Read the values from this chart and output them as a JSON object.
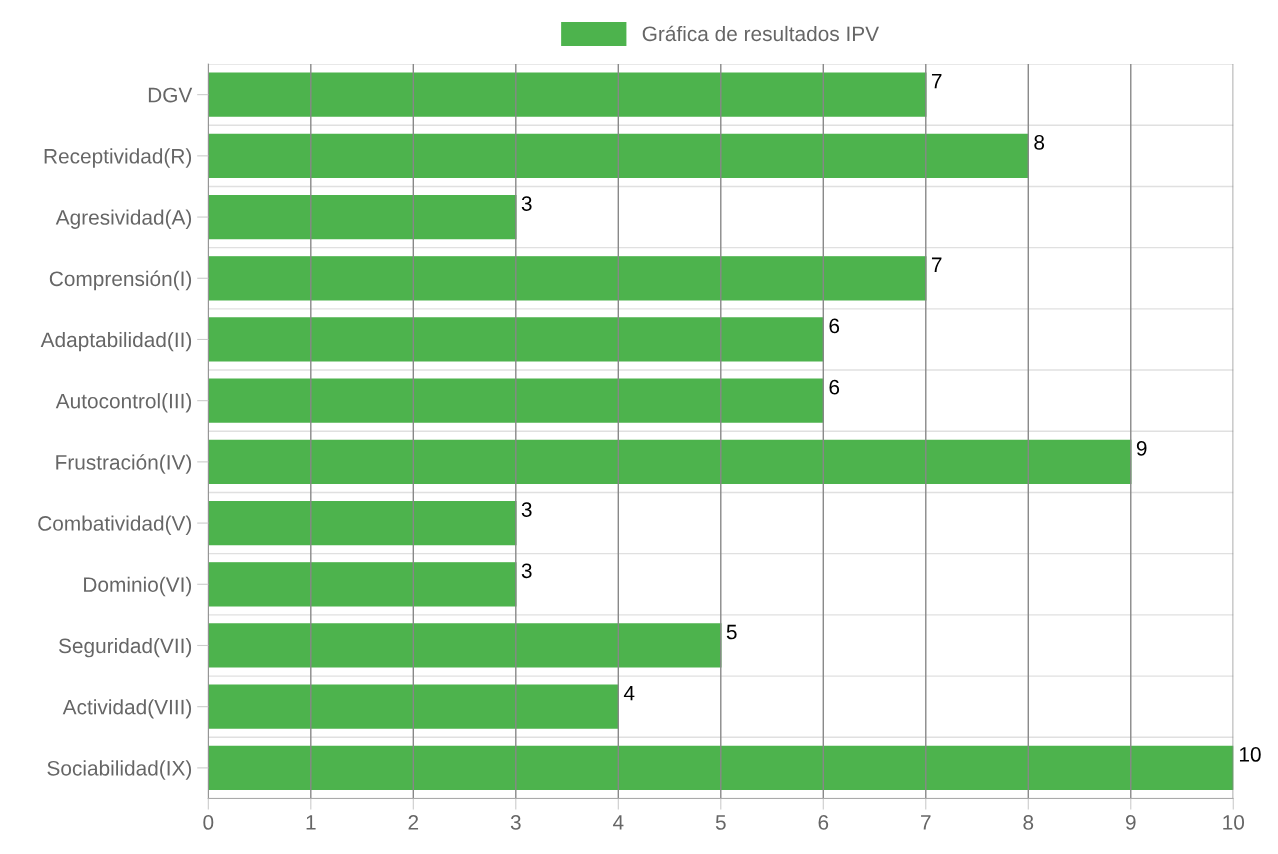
{
  "chart_data": {
    "type": "bar",
    "orientation": "horizontal",
    "categories": [
      "DGV",
      "Receptividad(R)",
      "Agresividad(A)",
      "Comprensión(I)",
      "Adaptabilidad(II)",
      "Autocontrol(III)",
      "Frustración(IV)",
      "Combatividad(V)",
      "Dominio(VI)",
      "Seguridad(VII)",
      "Actividad(VIII)",
      "Sociabilidad(IX)"
    ],
    "series": [
      {
        "name": "Gráfica de resultados IPV",
        "color": "#4db34d",
        "values": [
          7,
          8,
          3,
          7,
          6,
          6,
          9,
          3,
          3,
          5,
          4,
          10
        ]
      }
    ],
    "xlim": [
      0,
      10
    ],
    "xticks": [
      0,
      1,
      2,
      3,
      4,
      5,
      6,
      7,
      8,
      9,
      10
    ],
    "grid": true,
    "legend": "top",
    "data_labels": true
  }
}
